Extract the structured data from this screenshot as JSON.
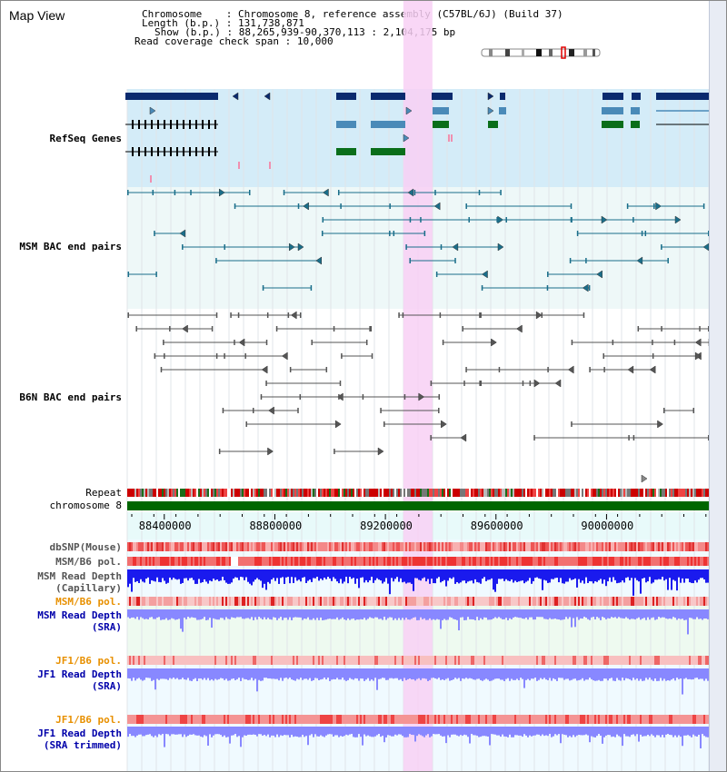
{
  "view_title": "Map View",
  "info": {
    "chromosome_label": "Chromosome",
    "chromosome_value": "Chromosome 8, reference assembly (C57BL/6J) (Build 37)",
    "length_label": "Length (b.p.)",
    "length_value": "131,738,871",
    "show_label": "Show (b.p.)",
    "show_value": "88,265,939-90,370,113 : 2,104,175 bp",
    "span_label": "Read coverage check span",
    "span_value": "10,000"
  },
  "tracks": {
    "refseq": {
      "label": "RefSeq Genes",
      "color": "#0000aa"
    },
    "msm_bac": {
      "label": "MSM BAC end pairs",
      "color": "#006688"
    },
    "b6n_bac": {
      "label": "B6N BAC end pairs",
      "color": "#555555"
    },
    "repeat": {
      "label": "Repeat"
    },
    "chromosome": {
      "label": "chromosome 8"
    },
    "dbsnp": {
      "label": "dbSNP(Mouse)"
    },
    "msm_b6_pol_1": {
      "label": "MSM/B6 pol."
    },
    "msm_depth_cap": {
      "label": "MSM Read Depth",
      "sublabel": "(Capillary)"
    },
    "msm_b6_pol_2": {
      "label": "MSM/B6 pol."
    },
    "msm_depth_sra": {
      "label": "MSM Read Depth",
      "sublabel": "(SRA)"
    },
    "jf1_b6_pol_1": {
      "label": "JF1/B6 pol."
    },
    "jf1_depth_sra": {
      "label": "JF1 Read Depth",
      "sublabel": "(SRA)"
    },
    "jf1_b6_pol_2": {
      "label": "JF1/B6 pol."
    },
    "jf1_depth_trim": {
      "label": "JF1 Read Depth",
      "sublabel": "(SRA trimmed)"
    }
  },
  "axis": {
    "ticks": [
      "88400000",
      "88800000",
      "89200000",
      "89600000",
      "90000000"
    ],
    "tick_positions_bp": [
      88400000,
      88800000,
      89200000,
      89600000,
      90000000
    ],
    "start_bp": 88265939,
    "end_bp": 90370113
  },
  "highlight": {
    "start_bp": 89265000,
    "end_bp": 89370000
  },
  "colors": {
    "refseq_dark": "#0a2a6e",
    "refseq_mid": "#4a8ab8",
    "refseq_green": "#0a6e1a",
    "msm_line": "#1a6e8a",
    "b6n_line": "#555555",
    "highlight": "#f8d0f4",
    "chromosome_bar": "#006600",
    "depth_capillary": "#1a1aee",
    "depth_sra": "#8888ff",
    "pol_label_orange": "#e89000",
    "depth_label_blue": "#0000aa"
  }
}
